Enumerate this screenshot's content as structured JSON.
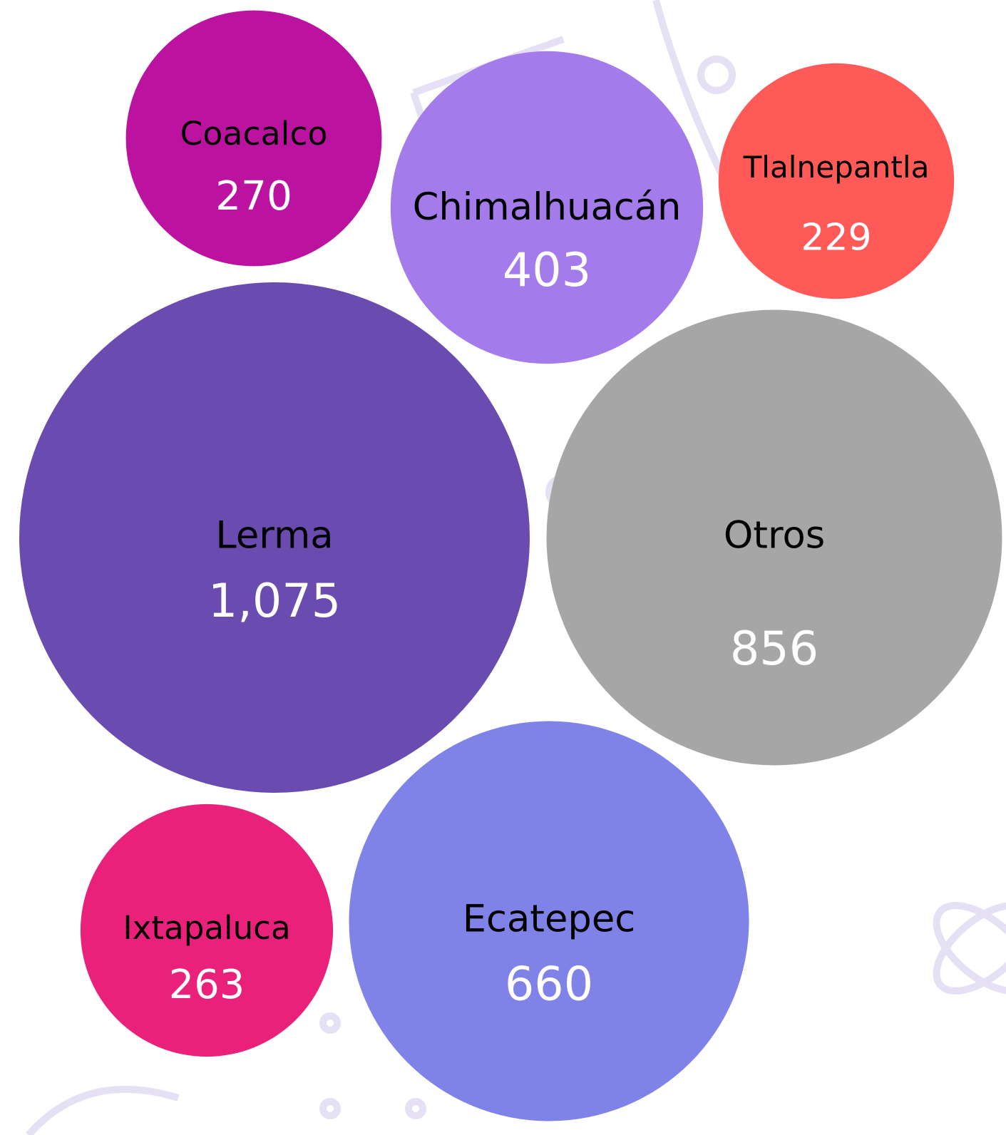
{
  "chart_data": {
    "type": "bubble",
    "categories": [
      "Coacalco",
      "Chimalhuacán",
      "Tlalnepantla",
      "Lerma",
      "Otros",
      "Ixtapaluca",
      "Ecatepec"
    ],
    "values": [
      270,
      403,
      229,
      1075,
      856,
      263,
      660
    ],
    "value_labels": [
      "270",
      "403",
      "229",
      "1,075",
      "856",
      "263",
      "660"
    ],
    "colors": [
      "#bb139f",
      "#a47bea",
      "#ff5a58",
      "#6a4baf",
      "#a6a6a6",
      "#e9217b",
      "#7f82e6"
    ]
  }
}
